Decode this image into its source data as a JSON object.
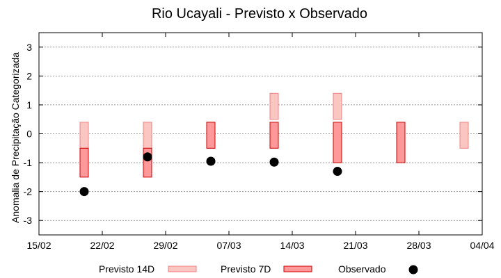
{
  "chart_data": {
    "type": "bar",
    "title": "Rio Ucayali - Previsto x Observado",
    "xlabel": "",
    "ylabel": "Anomalia de Precipitação Categorizada",
    "x_ticks": [
      "15/02",
      "22/02",
      "29/02",
      "07/03",
      "14/03",
      "21/03",
      "28/03",
      "04/04"
    ],
    "y_ticks": [
      "3",
      "2",
      "1",
      "0",
      "-1",
      "-2",
      "-3"
    ],
    "ylim": [
      -3.5,
      3.5
    ],
    "grid": true,
    "legend_position": "bottom",
    "colors": {
      "previsto_14d_fill": "#f9c6c1",
      "previsto_14d_stroke": "#f08080",
      "previsto_7d_fill": "#ff9999",
      "previsto_7d_stroke": "#cc0000",
      "observado": "#000000",
      "grid": "#9a9a9a"
    },
    "series": [
      {
        "name": "Previsto 14D",
        "kind": "range",
        "points": [
          {
            "x": "20/02",
            "low": -0.5,
            "high": 0.4
          },
          {
            "x": "27/02",
            "low": -0.5,
            "high": 0.4
          },
          {
            "x": "05/03",
            "low": -0.5,
            "high": 0.4
          },
          {
            "x": "12/03",
            "low": 0.5,
            "high": 1.4
          },
          {
            "x": "19/03",
            "low": 0.5,
            "high": 1.4
          },
          {
            "x": "02/04",
            "low": -0.5,
            "high": 0.4
          }
        ]
      },
      {
        "name": "Previsto 7D",
        "kind": "range",
        "points": [
          {
            "x": "20/02",
            "low": -1.5,
            "high": -0.5
          },
          {
            "x": "27/02",
            "low": -1.5,
            "high": -0.5
          },
          {
            "x": "05/03",
            "low": -0.5,
            "high": 0.4
          },
          {
            "x": "12/03",
            "low": -0.5,
            "high": 0.4
          },
          {
            "x": "19/03",
            "low": -1.0,
            "high": 0.4
          },
          {
            "x": "26/03",
            "low": -1.0,
            "high": 0.4
          }
        ]
      },
      {
        "name": "Observado",
        "kind": "point",
        "points": [
          {
            "x": "20/02",
            "y": -2.0
          },
          {
            "x": "27/02",
            "y": -0.8
          },
          {
            "x": "05/03",
            "y": -0.95
          },
          {
            "x": "12/03",
            "y": -0.98
          },
          {
            "x": "19/03",
            "y": -1.3
          }
        ]
      }
    ]
  }
}
